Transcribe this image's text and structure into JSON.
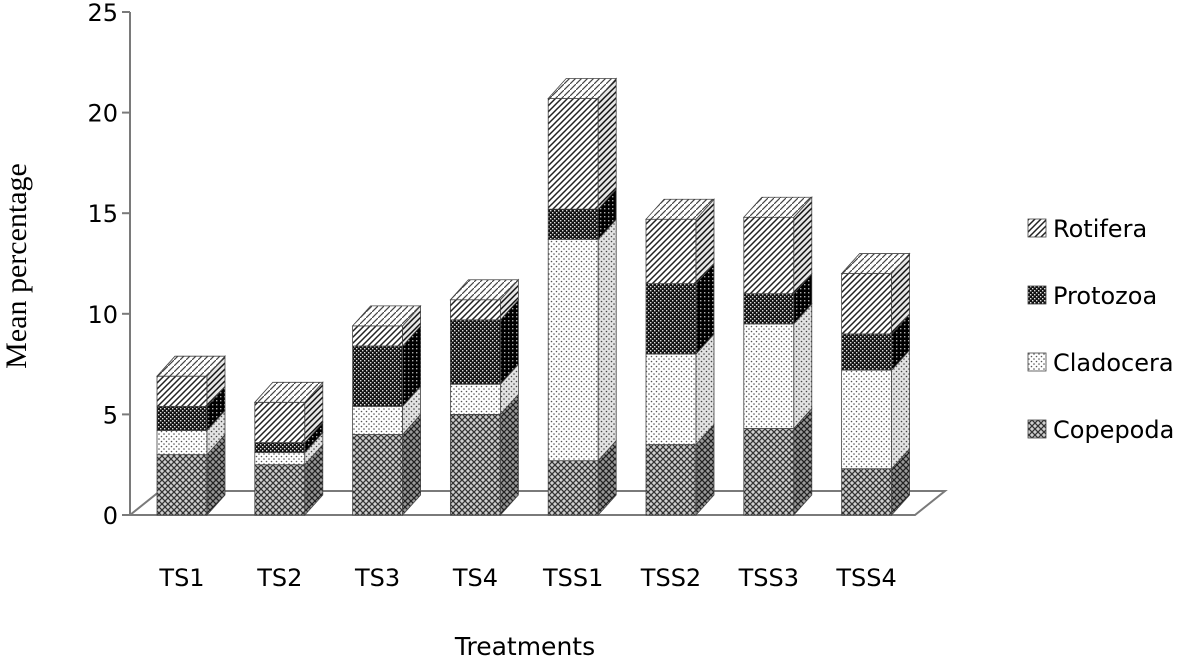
{
  "chart_data": {
    "type": "bar",
    "stacked": true,
    "style": "3d-column",
    "categories": [
      "TS1",
      "TS2",
      "TS3",
      "TS4",
      "TSS1",
      "TSS2",
      "TSS3",
      "TSS4"
    ],
    "series": [
      {
        "name": "Copepoda",
        "values": [
          3.0,
          2.5,
          4.0,
          5.0,
          2.7,
          3.5,
          4.3,
          2.3
        ],
        "pattern": "crosshatch"
      },
      {
        "name": "Cladocera",
        "values": [
          1.2,
          0.6,
          1.4,
          1.5,
          11.0,
          4.5,
          5.2,
          4.9
        ],
        "pattern": "dots"
      },
      {
        "name": "Protozoa",
        "values": [
          1.2,
          0.5,
          3.0,
          3.2,
          1.5,
          3.5,
          1.5,
          1.8
        ],
        "pattern": "dark-checker"
      },
      {
        "name": "Rotifera",
        "values": [
          1.5,
          2.0,
          1.0,
          1.0,
          5.5,
          3.2,
          3.8,
          3.0
        ],
        "pattern": "diagonal"
      }
    ],
    "xlabel": "Treatments",
    "ylabel": "Mean percentage",
    "ylim": [
      0,
      25
    ],
    "yticks": [
      0,
      5,
      10,
      15,
      20,
      25
    ],
    "grid": false,
    "legend_position": "right"
  }
}
